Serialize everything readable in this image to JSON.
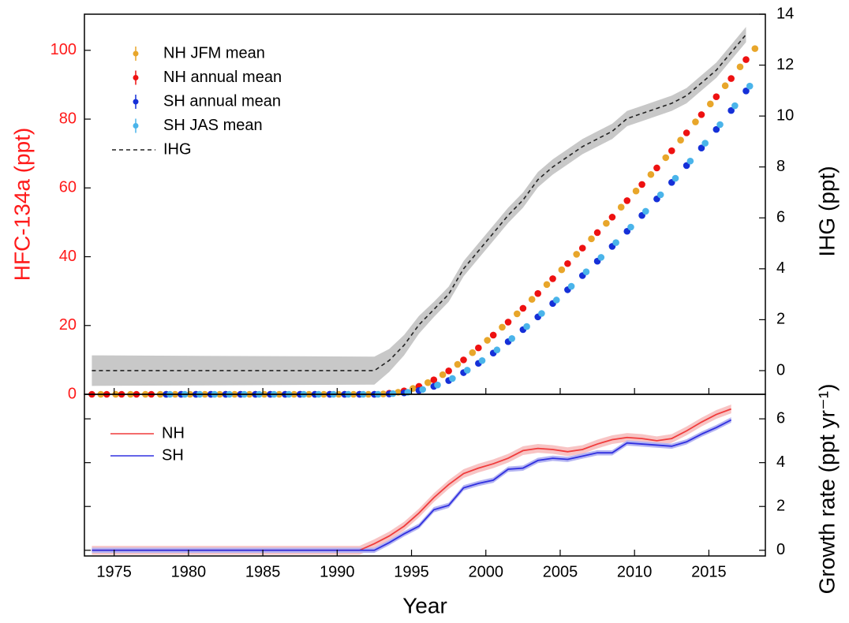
{
  "chart_data": [
    {
      "type": "scatter",
      "ylabel": "HFC-134a (ppt)",
      "y2label": "IHG (ppt)",
      "yaxis_color": "#ff1a1a",
      "xlim": [
        1973,
        2018.8
      ],
      "ylim": [
        0,
        110.5
      ],
      "yticks": [
        0,
        20,
        40,
        60,
        80,
        100
      ],
      "y2lim": [
        -0.93,
        14
      ],
      "y2ticks": [
        0,
        2,
        4,
        6,
        8,
        10,
        12,
        14
      ],
      "legend": "upper left",
      "series": [
        {
          "name": "NH JFM mean",
          "type": "scatter",
          "color": "#e8a62a",
          "x": [
            1974.1,
            1975.1,
            1976.1,
            1977.1,
            1978.1,
            1979.1,
            1980.1,
            1981.1,
            1982.1,
            1983.1,
            1984.1,
            1985.1,
            1986.1,
            1987.1,
            1988.1,
            1989.1,
            1990.1,
            1991.1,
            1992.1,
            1993.1,
            1994.1,
            1995.1,
            1996.1,
            1997.1,
            1998.1,
            1999.1,
            2000.1,
            2001.1,
            2002.1,
            2003.1,
            2004.1,
            2005.1,
            2006.1,
            2007.1,
            2008.1,
            2009.1,
            2010.1,
            2011.1,
            2012.1,
            2013.1,
            2014.1,
            2015.1,
            2016.1,
            2017.1,
            2018.1
          ],
          "values": [
            0,
            0,
            0,
            0,
            0,
            0,
            0,
            0,
            0,
            0,
            0,
            0,
            0,
            0,
            0,
            0,
            0,
            0,
            0,
            0.1,
            0.6,
            1.7,
            3.4,
            5.7,
            8.7,
            12.1,
            15.7,
            19.5,
            23.4,
            27.6,
            31.9,
            36.2,
            40.7,
            45.2,
            49.7,
            54.4,
            59.1,
            63.9,
            68.8,
            73.9,
            79.2,
            84.4,
            89.7,
            95.2,
            100.5
          ]
        },
        {
          "name": "NH annual mean",
          "type": "scatter",
          "color": "#ee1111",
          "x": [
            1973.5,
            1974.5,
            1975.5,
            1976.5,
            1977.5,
            1978.5,
            1979.5,
            1980.5,
            1981.5,
            1982.5,
            1983.5,
            1984.5,
            1985.5,
            1986.5,
            1987.5,
            1988.5,
            1989.5,
            1990.5,
            1991.5,
            1992.5,
            1993.5,
            1994.5,
            1995.5,
            1996.5,
            1997.5,
            1998.5,
            1999.5,
            2000.5,
            2001.5,
            2002.5,
            2003.5,
            2004.5,
            2005.5,
            2006.5,
            2007.5,
            2008.5,
            2009.5,
            2010.5,
            2011.5,
            2012.5,
            2013.5,
            2014.5,
            2015.5,
            2016.5,
            2017.5
          ],
          "values": [
            0,
            0,
            0,
            0,
            0,
            0,
            0,
            0,
            0,
            0,
            0,
            0,
            0,
            0,
            0,
            0,
            0,
            0,
            0,
            0,
            0.3,
            1.0,
            2.3,
            4.2,
            6.8,
            10.0,
            13.5,
            17.2,
            21.0,
            25.0,
            29.3,
            33.6,
            38.0,
            42.5,
            47.0,
            51.5,
            56.3,
            61.0,
            65.8,
            70.8,
            76.0,
            81.3,
            86.5,
            91.8,
            97.3
          ]
        },
        {
          "name": "SH annual mean",
          "type": "scatter",
          "color": "#1530d8",
          "x": [
            1978.5,
            1979.5,
            1980.5,
            1981.5,
            1982.5,
            1983.5,
            1984.5,
            1985.5,
            1986.5,
            1987.5,
            1988.5,
            1989.5,
            1990.5,
            1991.5,
            1992.5,
            1993.5,
            1994.5,
            1995.5,
            1996.5,
            1997.5,
            1998.5,
            1999.5,
            2000.5,
            2001.5,
            2002.5,
            2003.5,
            2004.5,
            2005.5,
            2006.5,
            2007.5,
            2008.5,
            2009.5,
            2010.5,
            2011.5,
            2012.5,
            2013.5,
            2014.5,
            2015.5,
            2016.5,
            2017.5
          ],
          "values": [
            0,
            0,
            0,
            0,
            0,
            0,
            0,
            0,
            0,
            0,
            0,
            0,
            0,
            0,
            0,
            0.1,
            0.4,
            1.1,
            2.3,
            4.0,
            6.3,
            9.0,
            12.0,
            15.3,
            18.8,
            22.5,
            26.4,
            30.4,
            34.5,
            38.7,
            43.0,
            47.4,
            52.0,
            56.8,
            61.6,
            66.5,
            71.6,
            77.0,
            82.5,
            88.2
          ]
        },
        {
          "name": "SH JAS mean",
          "type": "scatter",
          "color": "#4ab4ea",
          "x": [
            1978.75,
            1979.75,
            1980.75,
            1981.75,
            1982.75,
            1983.75,
            1984.75,
            1985.75,
            1986.75,
            1987.75,
            1988.75,
            1989.75,
            1990.75,
            1991.75,
            1992.75,
            1993.75,
            1994.75,
            1995.75,
            1996.75,
            1997.75,
            1998.75,
            1999.75,
            2000.75,
            2001.75,
            2002.75,
            2003.75,
            2004.75,
            2005.75,
            2006.75,
            2007.75,
            2008.75,
            2009.75,
            2010.75,
            2011.75,
            2012.75,
            2013.75,
            2014.75,
            2015.75,
            2016.75,
            2017.75
          ],
          "values": [
            0,
            0,
            0,
            0,
            0,
            0,
            0,
            0,
            0,
            0,
            0,
            0,
            0,
            0,
            0,
            0.2,
            0.6,
            1.4,
            2.7,
            4.6,
            7.0,
            9.8,
            12.9,
            16.2,
            19.7,
            23.5,
            27.4,
            31.4,
            35.6,
            39.8,
            44.1,
            48.6,
            53.2,
            58.0,
            62.8,
            67.8,
            73.0,
            78.4,
            83.9,
            89.6
          ]
        },
        {
          "name": "IHG",
          "type": "line",
          "axis": "y2",
          "style": "dashed",
          "color": "#222222",
          "band_color": "#c8c8c8",
          "x": [
            1973.5,
            1992.5,
            1993.5,
            1994.5,
            1995.5,
            1996.5,
            1997.5,
            1998.5,
            1999.5,
            2000.5,
            2001.5,
            2002.5,
            2003.5,
            2004.5,
            2005.5,
            2006.5,
            2007.5,
            2008.5,
            2009.5,
            2010.5,
            2011.5,
            2012.5,
            2013.5,
            2014.5,
            2015.5,
            2016.5,
            2017.5
          ],
          "values": [
            0,
            0,
            0.4,
            1.0,
            1.8,
            2.4,
            3.0,
            4.0,
            4.7,
            5.4,
            6.1,
            6.7,
            7.5,
            8.0,
            8.4,
            8.8,
            9.1,
            9.4,
            9.9,
            10.1,
            10.3,
            10.5,
            10.8,
            11.3,
            11.8,
            12.5,
            13.2
          ],
          "errors": [
            0.6,
            0.55,
            0.45,
            0.4,
            0.35,
            0.3,
            0.3,
            0.3,
            0.3,
            0.3,
            0.3,
            0.3,
            0.3,
            0.3,
            0.3,
            0.3,
            0.3,
            0.3,
            0.3,
            0.3,
            0.3,
            0.3,
            0.3,
            0.3,
            0.3,
            0.3,
            0.3
          ]
        }
      ]
    },
    {
      "type": "line",
      "xlabel": "Year",
      "y2label": "Growth rate (ppt yr⁻¹)",
      "ytick_side": "right",
      "xlim": [
        1973,
        2018.8
      ],
      "xticks": [
        1975,
        1980,
        1985,
        1990,
        1995,
        2000,
        2005,
        2010,
        2015
      ],
      "ylim": [
        -0.26,
        7.12
      ],
      "yticks": [
        0,
        2,
        4,
        6
      ],
      "legend": "upper left",
      "series": [
        {
          "name": "NH",
          "type": "line",
          "color": "#f03c3c",
          "band_color": "#f8c4c4",
          "error": 0.2,
          "x": [
            1973.5,
            1991.5,
            1992.5,
            1993.5,
            1994.5,
            1995.5,
            1996.5,
            1997.5,
            1998.5,
            1999.5,
            2000.5,
            2001.5,
            2002.5,
            2003.5,
            2004.5,
            2005.5,
            2006.5,
            2007.5,
            2008.5,
            2009.5,
            2010.5,
            2011.5,
            2012.5,
            2013.5,
            2014.5,
            2015.5,
            2016.5
          ],
          "values": [
            0,
            0,
            0.3,
            0.65,
            1.1,
            1.7,
            2.4,
            3.0,
            3.5,
            3.75,
            3.95,
            4.2,
            4.55,
            4.65,
            4.6,
            4.5,
            4.6,
            4.85,
            5.05,
            5.15,
            5.1,
            5.0,
            5.1,
            5.45,
            5.85,
            6.2,
            6.45
          ]
        },
        {
          "name": "SH",
          "type": "line",
          "color": "#3030e0",
          "band_color": "#b4b4f2",
          "error": 0.12,
          "x": [
            1973.5,
            1992.5,
            1993.5,
            1994.5,
            1995.5,
            1996.5,
            1997.5,
            1998.5,
            1999.5,
            2000.5,
            2001.5,
            2002.5,
            2003.5,
            2004.5,
            2005.5,
            2006.5,
            2007.5,
            2008.5,
            2009.5,
            2010.5,
            2011.5,
            2012.5,
            2013.5,
            2014.5,
            2015.5,
            2016.5
          ],
          "values": [
            0,
            0,
            0.35,
            0.75,
            1.1,
            1.85,
            2.05,
            2.85,
            3.05,
            3.2,
            3.7,
            3.75,
            4.1,
            4.2,
            4.15,
            4.3,
            4.45,
            4.45,
            4.9,
            4.85,
            4.8,
            4.75,
            4.95,
            5.3,
            5.6,
            5.95
          ]
        }
      ]
    }
  ]
}
